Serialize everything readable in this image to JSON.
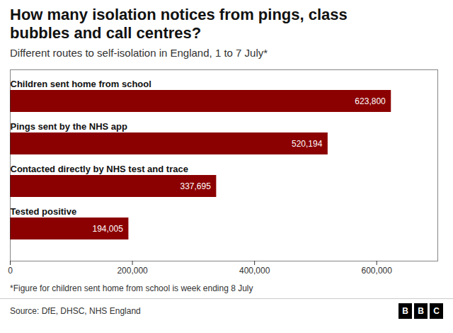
{
  "chart_data": {
    "type": "bar",
    "orientation": "horizontal",
    "title": "How many isolation notices from pings, class bubbles and call centres?",
    "subtitle": "Different routes to self-isolation in England, 1 to 7 July*",
    "categories": [
      "Children sent home from school",
      "Pings sent by the NHS app",
      "Contacted directly by NHS test and trace",
      "Tested positive"
    ],
    "values": [
      623800,
      520194,
      337695,
      194005
    ],
    "value_labels": [
      "623,800",
      "520,194",
      "337,695",
      "194,005"
    ],
    "data_labels": true,
    "color": "#8B0000",
    "xlim": [
      0,
      700000
    ],
    "xticks": [
      0,
      {
        "value": 200000,
        "label": "200,000"
      },
      {
        "value": 400000,
        "label": "400,000"
      },
      {
        "value": 600000,
        "label": "600,000"
      }
    ],
    "footnote": "*Figure for children sent home from school is week ending 8 July",
    "source": "Source: DfE, DHSC, NHS England",
    "logo": "BBC"
  }
}
